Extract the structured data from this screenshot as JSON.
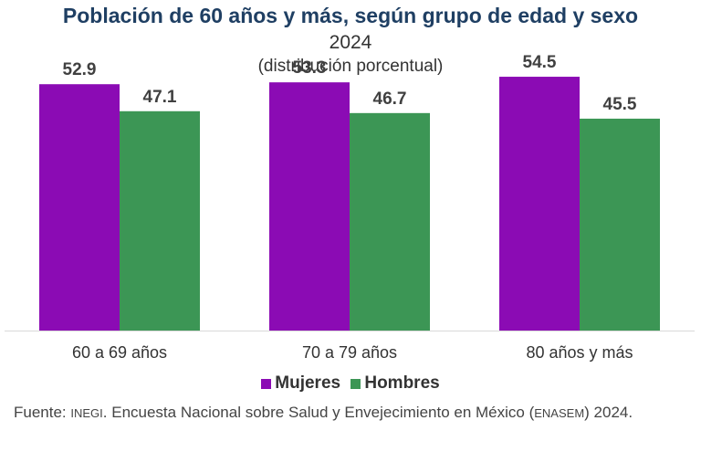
{
  "colors": {
    "mujeres": "#8b0bb4",
    "hombres": "#3c9655",
    "title": "#1f3f63"
  },
  "chart_data": {
    "type": "bar",
    "title": "Población de 60 años y más, según grupo de edad y sexo",
    "subtitle": "2024",
    "subtitle2": "(distribución porcentual)",
    "categories": [
      "60 a 69 años",
      "70 a 79 años",
      "80 años y más"
    ],
    "series": [
      {
        "name": "Mujeres",
        "values": [
          52.9,
          53.3,
          54.5
        ]
      },
      {
        "name": "Hombres",
        "values": [
          47.1,
          46.7,
          45.5
        ]
      }
    ],
    "value_labels": {
      "Mujeres": [
        "52.9",
        "53.3",
        "54.5"
      ],
      "Hombres": [
        "47.1",
        "46.7",
        "45.5"
      ]
    },
    "ylim": [
      0,
      60
    ],
    "grid": false,
    "legend": "bottom"
  },
  "legend": {
    "mujeres": "Mujeres",
    "hombres": "Hombres"
  },
  "source": {
    "prefix": "Fuente: ",
    "inegi": "INEGI",
    "middle": ". Encuesta Nacional sobre Salud y Envejecimiento en México (",
    "enasem": "ENASEM",
    "suffix": ") 2024."
  }
}
